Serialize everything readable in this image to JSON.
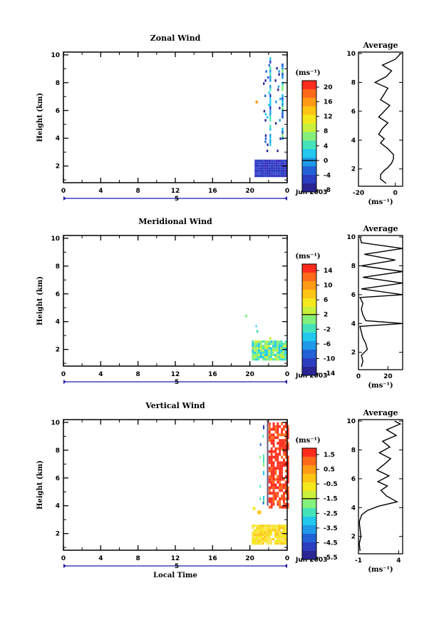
{
  "figure": {
    "date_label": "Jun 2003",
    "xlabel": "Local Time",
    "x_ticks": [
      "0",
      "4",
      "8",
      "12",
      "16",
      "20",
      "0"
    ],
    "date_tick": "5"
  },
  "chart_data": [
    {
      "type": "heatmap",
      "title": "Zonal Wind",
      "ylabel": "Height (km)",
      "xlim": [
        0,
        24
      ],
      "ylim": [
        0.8,
        10.2
      ],
      "y_ticks": [
        "2",
        "4",
        "6",
        "8",
        "10"
      ],
      "colorbar": {
        "unit": "(ms⁻¹)",
        "ticks": [
          "20",
          "16",
          "12",
          "8",
          "4",
          "0",
          "-4",
          "-8"
        ]
      },
      "average": {
        "title": "Average",
        "xlim": [
          -20,
          4
        ],
        "x_ticks": [
          "-20",
          "0"
        ],
        "xlabel": "(ms⁻¹)",
        "y_ticks": [
          "2",
          "4",
          "6",
          "8",
          "10"
        ],
        "profile_y": [
          1.0,
          1.3,
          1.6,
          1.9,
          2.1,
          2.4,
          2.7,
          3.0,
          3.4,
          3.8,
          4.1,
          4.4,
          4.8,
          5.2,
          5.6,
          6.0,
          6.4,
          6.8,
          7.2,
          7.6,
          8.0,
          8.4,
          8.8,
          9.2,
          9.6,
          10.0
        ],
        "profile_x": [
          -5,
          -8,
          -8,
          -6,
          -4,
          -2,
          -1,
          -1,
          -4,
          -8,
          -6,
          -9,
          -7,
          -4,
          -9,
          -6,
          -3,
          -8,
          -6,
          -4,
          -11,
          -5,
          -2,
          -7,
          0,
          3
        ]
      }
    },
    {
      "type": "heatmap",
      "title": "Meridional Wind",
      "ylabel": "Height (km)",
      "xlim": [
        0,
        24
      ],
      "ylim": [
        0.8,
        10.2
      ],
      "y_ticks": [
        "2",
        "4",
        "6",
        "8",
        "10"
      ],
      "colorbar": {
        "unit": "(ms⁻¹)",
        "ticks": [
          "14",
          "10",
          "6",
          "2",
          "-2",
          "-6",
          "-10",
          "-14"
        ]
      },
      "average": {
        "title": "Average",
        "xlim": [
          0,
          30
        ],
        "x_ticks": [
          "0",
          "20"
        ],
        "xlabel": "(ms⁻¹)",
        "y_ticks": [
          "2",
          "4",
          "6",
          "8",
          "10"
        ],
        "profile_y": [
          1.0,
          1.4,
          1.8,
          2.2,
          2.6,
          3.0,
          3.4,
          3.8,
          4.0,
          4.2,
          4.6,
          5.0,
          5.4,
          5.8,
          6.0,
          6.4,
          6.8,
          7.2,
          7.6,
          8.0,
          8.4,
          8.8,
          9.2,
          9.6,
          10.0
        ],
        "profile_x": [
          2,
          3,
          2,
          6,
          5,
          3,
          2,
          1,
          30,
          5,
          3,
          2,
          3,
          1,
          30,
          2,
          30,
          3,
          30,
          2,
          25,
          4,
          30,
          2,
          1
        ]
      }
    },
    {
      "type": "heatmap",
      "title": "Vertical Wind",
      "ylabel": "Height (km)",
      "xlim": [
        0,
        24
      ],
      "ylim": [
        0.8,
        10.2
      ],
      "y_ticks": [
        "2",
        "4",
        "6",
        "8",
        "10"
      ],
      "colorbar": {
        "unit": "(ms⁻¹)",
        "ticks": [
          "1.5",
          "0.5",
          "-0.5",
          "-1.5",
          "-2.5",
          "-3.5",
          "-4.5",
          "-5.5"
        ]
      },
      "average": {
        "title": "Average",
        "xlim": [
          -1,
          4.5
        ],
        "x_ticks": [
          "-1",
          "4"
        ],
        "xlabel": "(ms⁻¹)",
        "y_ticks": [
          "2",
          "4",
          "6",
          "8",
          "10"
        ],
        "profile_y": [
          1.0,
          1.5,
          2.0,
          2.5,
          3.0,
          3.5,
          3.8,
          4.1,
          4.4,
          4.8,
          5.2,
          5.5,
          5.8,
          6.2,
          6.6,
          7.0,
          7.4,
          7.8,
          8.2,
          8.6,
          9.0,
          9.4,
          9.8,
          10.0
        ],
        "profile_x": [
          -0.8,
          -0.9,
          -0.7,
          -0.8,
          -0.9,
          -0.6,
          0.1,
          1.5,
          3.8,
          2.5,
          1.8,
          2.6,
          1.4,
          2.8,
          1.3,
          2.2,
          3.0,
          1.6,
          2.9,
          2.0,
          3.7,
          2.5,
          4.2,
          3.5
        ]
      }
    }
  ]
}
